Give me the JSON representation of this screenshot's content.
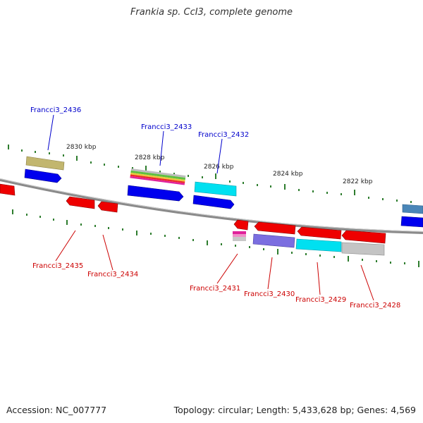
{
  "title": "Frankia sp. CcI3, complete genome",
  "footer": {
    "accession": "Accession: NC_007777",
    "summary": "Topology: circular; Length: 5,433,628 bp; Genes: 4,569"
  },
  "scale_labels": [
    "2830 kbp",
    "2828 kbp",
    "2826 kbp",
    "2824 kbp",
    "2822 kbp"
  ],
  "forward_gene_labels": [
    "Francci3_2436",
    "Francci3_2433",
    "Francci3_2432"
  ],
  "reverse_gene_labels": [
    "Francci3_2435",
    "Francci3_2434",
    "Francci3_2431",
    "Francci3_2430",
    "Francci3_2429",
    "Francci3_2428"
  ],
  "colors": {
    "forward_label": "#0000cc",
    "reverse_label": "#cc0000",
    "cds_forward": "#0000ee",
    "cds_reverse": "#ee0000",
    "backbone": "#888888",
    "tick": "#2e7d2e"
  }
}
